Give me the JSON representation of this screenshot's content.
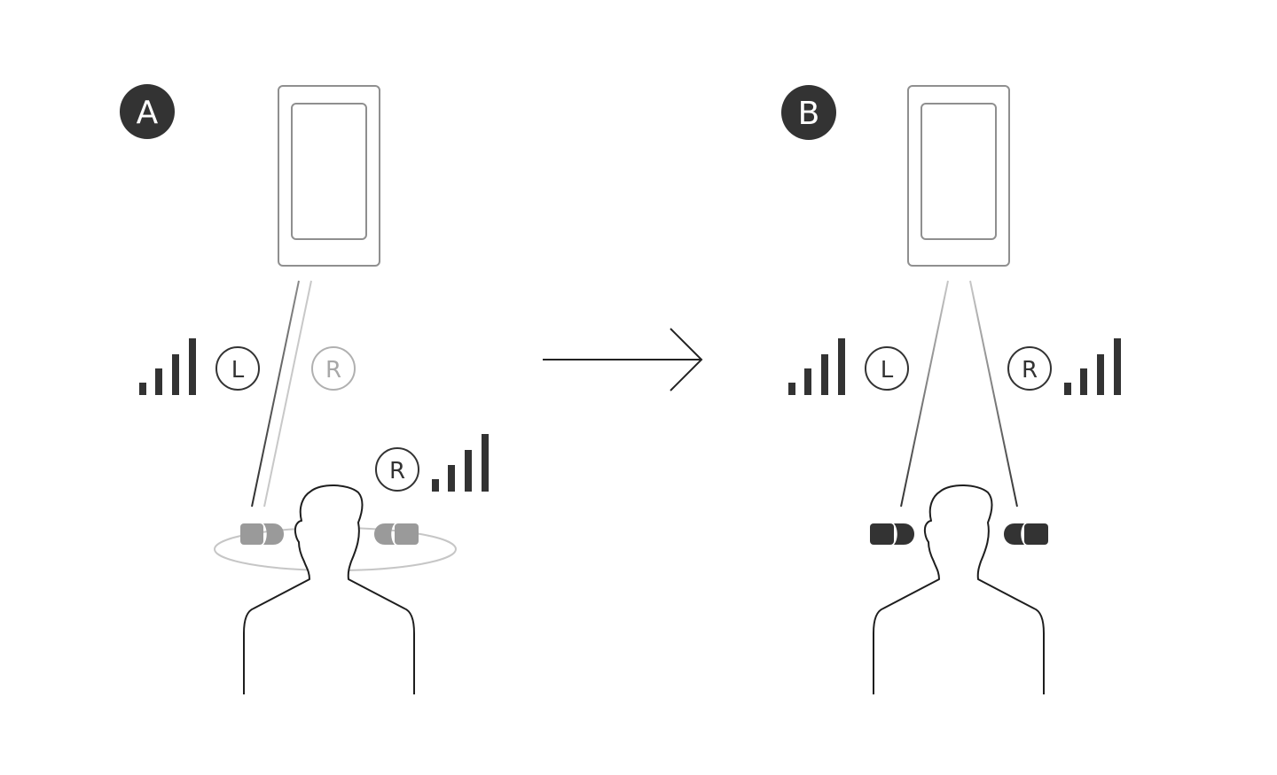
{
  "panels": {
    "a": {
      "badge": "A",
      "left_channel_label": "L",
      "right_channel_label_faded": "R",
      "right_channel_label": "R",
      "left_signal_bars": 4,
      "right_signal_bars": 4
    },
    "b": {
      "badge": "B",
      "left_channel_label": "L",
      "right_channel_label": "R",
      "left_signal_bars": 4,
      "right_signal_bars": 4
    }
  },
  "colors": {
    "dark": "#333333",
    "faded_earbud": "#9a9a9a",
    "faded_line": "#c4c4c4",
    "phone_outline": "#8f8f8f",
    "arrow": "#222222"
  },
  "icons": [
    "smartphone-icon",
    "earbud-icon",
    "signal-bars-icon",
    "person-silhouette-icon",
    "arrow-right-icon"
  ]
}
